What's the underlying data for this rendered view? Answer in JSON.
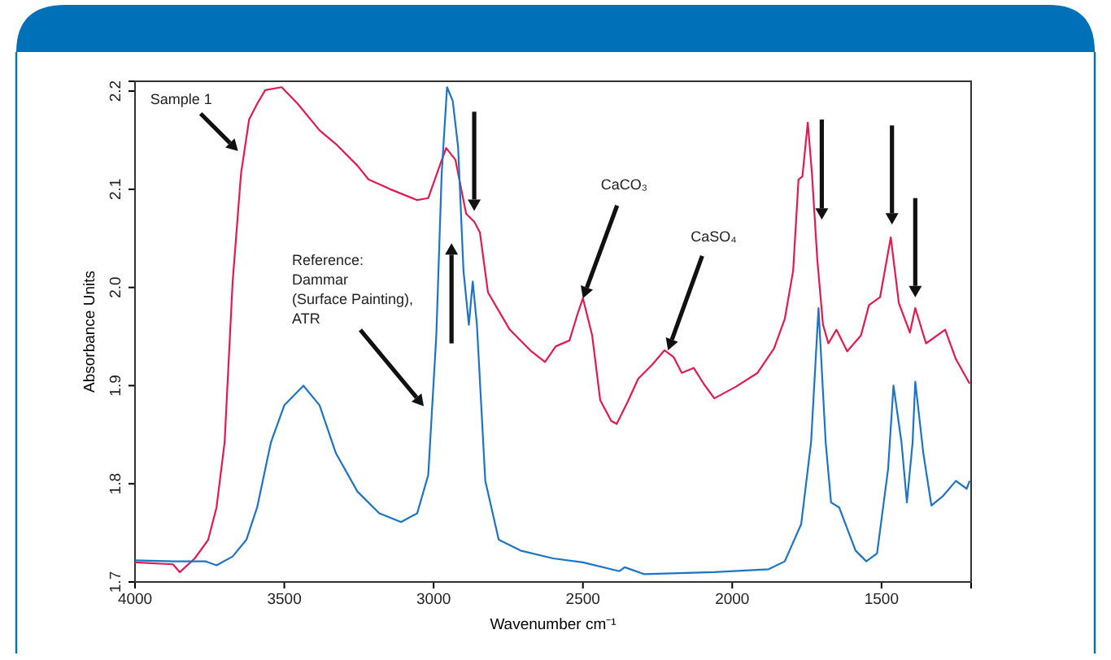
{
  "chart_data": {
    "type": "line",
    "xlabel": "Wavenumber cm⁻¹",
    "ylabel": "Absorbance Units",
    "xlim": [
      4000,
      1200
    ],
    "xticks": [
      4000,
      3500,
      3000,
      2500,
      2000,
      1500
    ],
    "ylim": [
      1.7,
      2.21
    ],
    "yticks": [
      1.7,
      1.8,
      1.9,
      {
        "value": 2,
        "label": "2.0"
      },
      2.1,
      2.2
    ],
    "marker": "none",
    "line_style": "solid",
    "series": [
      {
        "color": "#e5194f",
        "x": [
          4000,
          3873,
          3850,
          3800,
          3755,
          3727,
          3700,
          3673,
          3645,
          3618,
          3591,
          3564,
          3509,
          3455,
          3382,
          3327,
          3255,
          3218,
          3145,
          3055,
          3018,
          2982,
          2958,
          2927,
          2891,
          2864,
          2845,
          2818,
          2745,
          2673,
          2627,
          2591,
          2545,
          2518,
          2500,
          2469,
          2442,
          2405,
          2387,
          2351,
          2315,
          2269,
          2227,
          2196,
          2169,
          2129,
          2096,
          2060,
          1987,
          1915,
          1860,
          1824,
          1796,
          1778,
          1765,
          1747,
          1733,
          1715,
          1696,
          1678,
          1651,
          1615,
          1569,
          1542,
          1505,
          1469,
          1442,
          1405,
          1387,
          1351,
          1287,
          1251,
          1205
        ],
        "values": [
          1.72,
          1.718,
          1.71,
          1.724,
          1.743,
          1.776,
          1.842,
          2.006,
          2.116,
          2.171,
          2.187,
          2.201,
          2.204,
          2.187,
          2.16,
          2.146,
          2.124,
          2.11,
          2.1,
          2.089,
          2.091,
          2.122,
          2.142,
          2.13,
          2.075,
          2.067,
          2.056,
          1.995,
          1.957,
          1.935,
          1.924,
          1.94,
          1.946,
          1.973,
          1.989,
          1.951,
          1.885,
          1.864,
          1.861,
          1.883,
          1.907,
          1.921,
          1.936,
          1.929,
          1.913,
          1.918,
          1.902,
          1.887,
          1.899,
          1.913,
          1.938,
          1.968,
          2.017,
          2.11,
          2.113,
          2.168,
          2.116,
          2.028,
          1.962,
          1.943,
          1.957,
          1.935,
          1.951,
          1.982,
          1.99,
          2.051,
          1.984,
          1.954,
          1.979,
          1.943,
          1.957,
          1.927,
          1.902
        ]
      },
      {
        "color": "#1b75c4",
        "x": [
          4000,
          3873,
          3764,
          3727,
          3673,
          3627,
          3591,
          3545,
          3500,
          3436,
          3382,
          3327,
          3255,
          3182,
          3109,
          3055,
          3018,
          2991,
          2973,
          2955,
          2936,
          2918,
          2900,
          2882,
          2869,
          2855,
          2827,
          2782,
          2709,
          2600,
          2500,
          2378,
          2360,
          2296,
          2060,
          1878,
          1824,
          1769,
          1736,
          1711,
          1687,
          1669,
          1642,
          1587,
          1551,
          1515,
          1478,
          1460,
          1433,
          1415,
          1396,
          1387,
          1360,
          1333,
          1296,
          1251,
          1215,
          1205
        ],
        "values": [
          1.722,
          1.721,
          1.721,
          1.717,
          1.726,
          1.743,
          1.776,
          1.842,
          1.88,
          1.9,
          1.88,
          1.831,
          1.792,
          1.77,
          1.761,
          1.77,
          1.809,
          1.951,
          2.116,
          2.204,
          2.19,
          2.143,
          2.017,
          1.962,
          2.006,
          1.962,
          1.803,
          1.743,
          1.732,
          1.724,
          1.72,
          1.711,
          1.715,
          1.708,
          1.71,
          1.713,
          1.721,
          1.759,
          1.842,
          1.979,
          1.842,
          1.781,
          1.776,
          1.732,
          1.721,
          1.729,
          1.815,
          1.9,
          1.842,
          1.781,
          1.842,
          1.904,
          1.831,
          1.778,
          1.787,
          1.803,
          1.795,
          1.803
        ]
      }
    ],
    "annotations": [
      {
        "text": "Sample 1",
        "x": 3655,
        "y": 2.139
      },
      {
        "text": "Reference:\nDammar\n(Surface Painting),\nATR",
        "x": 3033,
        "y": 1.879
      },
      {
        "text": "CaCO₃",
        "x": 2500,
        "y": 1.989
      },
      {
        "text": "CaSO₄",
        "x": 2215,
        "y": 1.936
      }
    ]
  }
}
